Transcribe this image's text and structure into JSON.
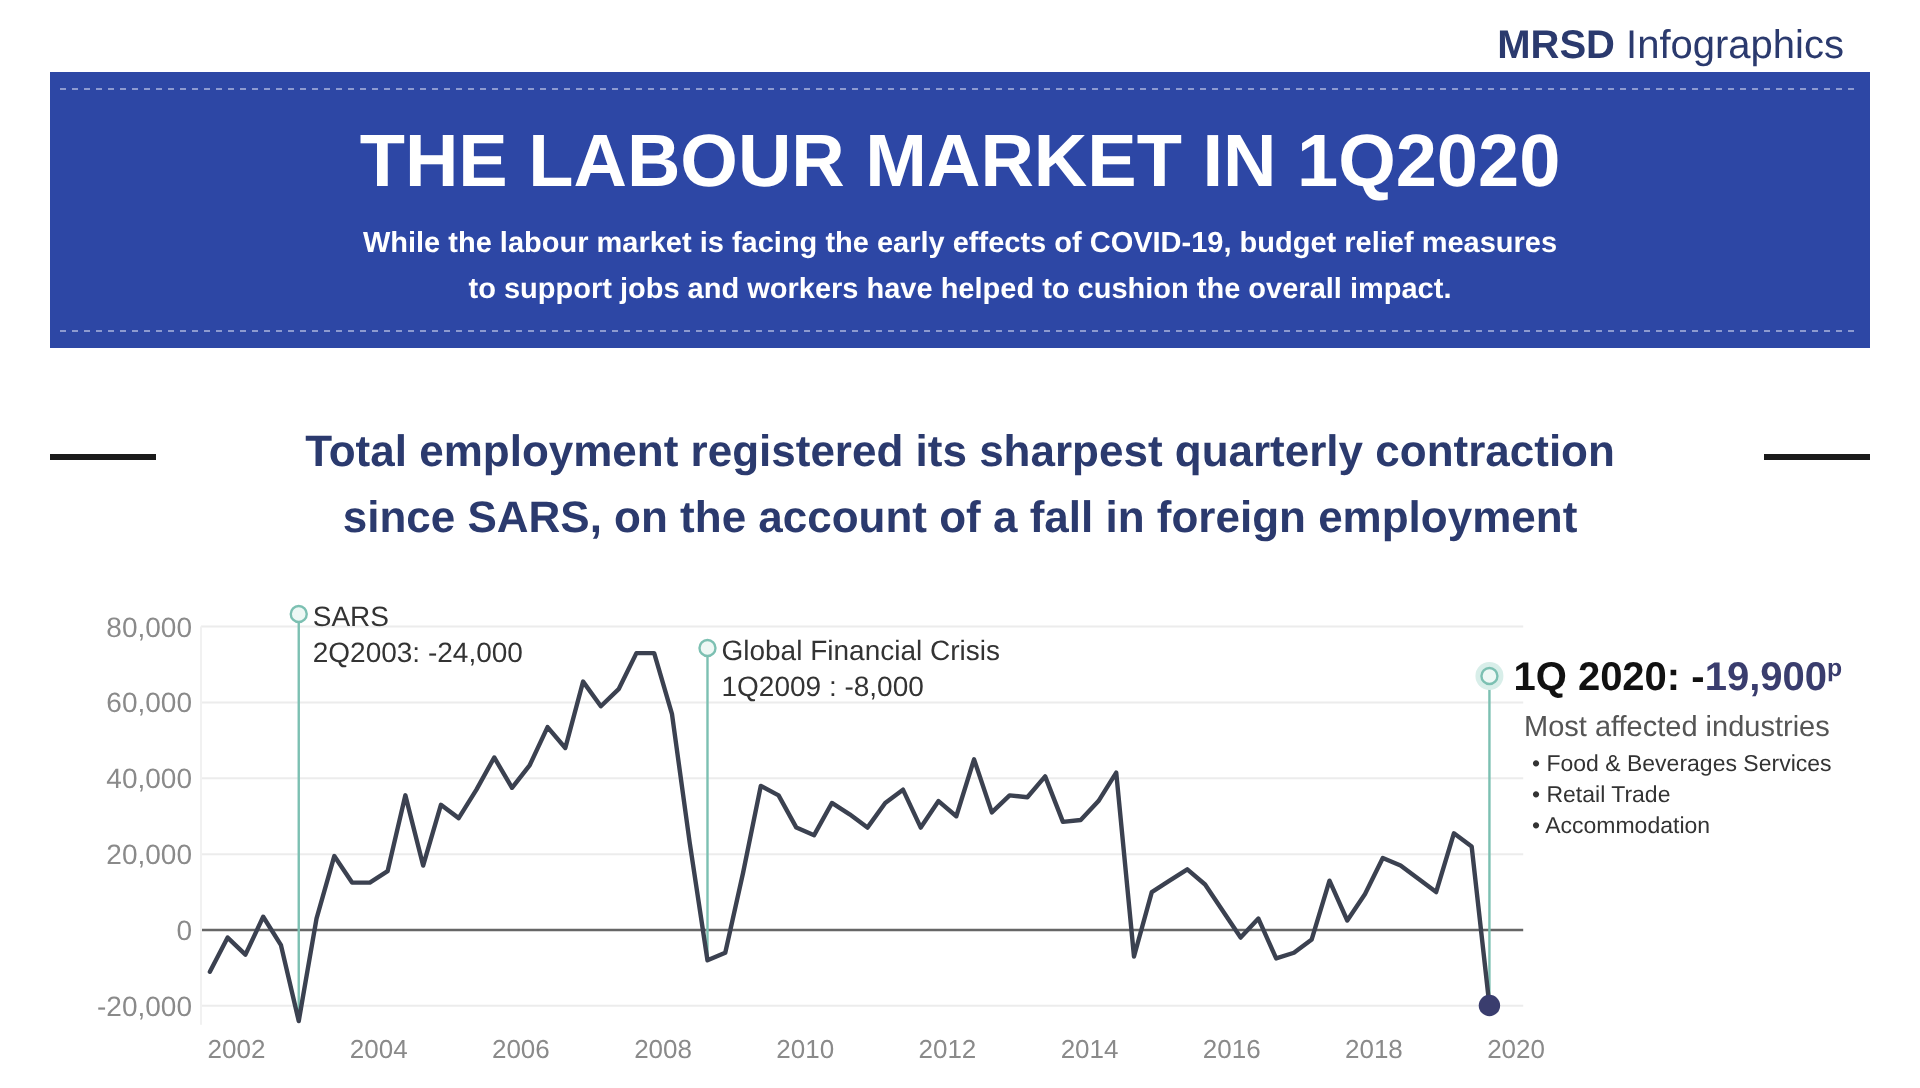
{
  "chart_data": {
    "type": "line",
    "title": "THE LABOUR MARKET IN 1Q2020",
    "subtitle": "While the labour market is facing the early effects of COVID-19, budget relief measures\nto support jobs and workers have helped to cushion the overall impact.",
    "annotations": [
      "MRSD Infographics",
      "Total employment registered its sharpest quarterly contraction\nsince SARS, on the account of a fall in foreign employment",
      {
        "text": "SARS\n2Q2003: -24,000",
        "x": 2003.375,
        "y": -24000
      },
      {
        "text": "Global Financial Crisis\n1Q2009 : -8,000",
        "x": 2009.125,
        "y": -8000
      },
      {
        "text": "1Q 2020: -19,900$^{p}$",
        "x": 2020.125,
        "y": -19900
      },
      "Most affected industries\n• Food & Beverages Services\n• Retail Trade\n• Accommodation"
    ],
    "x": [
      2002.125,
      2002.375,
      2002.625,
      2002.875,
      2003.125,
      2003.375,
      2003.625,
      2003.875,
      2004.125,
      2004.375,
      2004.625,
      2004.875,
      2005.125,
      2005.375,
      2005.625,
      2005.875,
      2006.125,
      2006.375,
      2006.625,
      2006.875,
      2007.125,
      2007.375,
      2007.625,
      2007.875,
      2008.125,
      2008.375,
      2008.625,
      2008.875,
      2009.125,
      2009.375,
      2009.625,
      2009.875,
      2010.125,
      2010.375,
      2010.625,
      2010.875,
      2011.125,
      2011.375,
      2011.625,
      2011.875,
      2012.125,
      2012.375,
      2012.625,
      2012.875,
      2013.125,
      2013.375,
      2013.625,
      2013.875,
      2014.125,
      2014.375,
      2014.625,
      2014.875,
      2015.125,
      2015.375,
      2015.625,
      2015.875,
      2016.125,
      2016.375,
      2016.625,
      2016.875,
      2017.125,
      2017.375,
      2017.625,
      2017.875,
      2018.125,
      2018.375,
      2018.625,
      2018.875,
      2019.125,
      2019.375,
      2019.625,
      2019.875,
      2020.125
    ],
    "series": [
      {
        "color": "#3b4150",
        "values": [
          -11000,
          -2000,
          -6500,
          3500,
          -4000,
          -24000,
          3000,
          19500,
          12500,
          12500,
          15500,
          35500,
          17000,
          33000,
          29500,
          37000,
          45500,
          37500,
          43500,
          53500,
          48000,
          65500,
          59000,
          63500,
          73000,
          73000,
          57000,
          23000,
          -8000,
          -6000,
          15000,
          38000,
          35500,
          27000,
          25000,
          33500,
          30500,
          27000,
          33500,
          37000,
          27000,
          34000,
          30000,
          45000,
          31000,
          35500,
          35000,
          40500,
          28500,
          29000,
          34000,
          41500,
          -7000,
          10000,
          13000,
          16000,
          12000,
          5000,
          -2000,
          3000,
          -7500,
          -6000,
          -2500,
          13000,
          2500,
          9500,
          19000,
          17000,
          13500,
          10000,
          25500,
          22000,
          -19900
        ]
      },
      {
        "type": "scatter",
        "x": [
          2020.125
        ],
        "color": "#3a3d6e",
        "marker": "circle",
        "values": [
          -19900
        ]
      }
    ],
    "xlim": [
      2002,
      2020.6
    ],
    "xticks": [
      {
        "value": 2002.5,
        "label": "2002"
      },
      {
        "value": 2004.5,
        "label": "2004"
      },
      {
        "value": 2006.5,
        "label": "2006"
      },
      {
        "value": 2008.5,
        "label": "2008"
      },
      {
        "value": 2010.5,
        "label": "2010"
      },
      {
        "value": 2012.5,
        "label": "2012"
      },
      {
        "value": 2014.5,
        "label": "2014"
      },
      {
        "value": 2016.5,
        "label": "2016"
      },
      {
        "value": 2018.5,
        "label": "2018"
      },
      {
        "value": 2020.5,
        "label": "2020"
      }
    ],
    "ylim": [
      -25000,
      80000
    ],
    "yticks": [
      {
        "value": -20000,
        "label": "-20,000"
      },
      0,
      {
        "value": 20000,
        "label": "20,000"
      },
      {
        "value": 40000,
        "label": "40,000"
      },
      {
        "value": 60000,
        "label": "60,000"
      },
      {
        "value": 80000,
        "label": "80,000"
      }
    ],
    "grid": "y"
  }
}
